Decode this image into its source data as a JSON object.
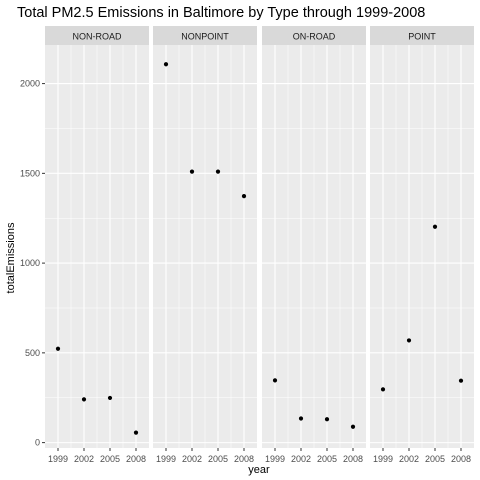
{
  "chart_data": {
    "type": "scatter",
    "title": "Total PM2.5 Emissions in Baltimore by Type through 1999-2008",
    "xlabel": "year",
    "ylabel": "totalEmissions",
    "x_ticks": [
      "1999",
      "2002",
      "2005",
      "2008"
    ],
    "y_ticks": [
      0,
      500,
      1000,
      1500,
      2000
    ],
    "ylim": [
      -30,
      2215
    ],
    "grid": true,
    "facets": [
      {
        "name": "NON-ROAD",
        "x": [
          1999,
          2002,
          2005,
          2008
        ],
        "values": [
          522.9,
          240.8,
          248.9,
          55.8
        ]
      },
      {
        "name": "NONPOINT",
        "x": [
          1999,
          2002,
          2005,
          2008
        ],
        "values": [
          2107.6,
          1509.5,
          1509.5,
          1373.2
        ]
      },
      {
        "name": "ON-ROAD",
        "x": [
          1999,
          2002,
          2005,
          2008
        ],
        "values": [
          346.8,
          134.3,
          130.4,
          88.3
        ]
      },
      {
        "name": "POINT",
        "x": [
          1999,
          2002,
          2005,
          2008
        ],
        "values": [
          296.8,
          569.3,
          1202.5,
          345.0
        ]
      }
    ],
    "colors": {
      "panel_background": "#ebebeb",
      "strip_background": "#d9d9d9",
      "grid_major": "#ffffff",
      "point": "#000000",
      "axis_text": "#4d4d4d"
    }
  }
}
